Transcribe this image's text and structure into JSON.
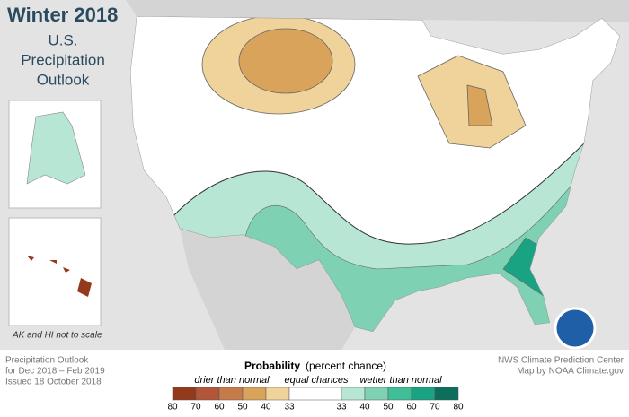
{
  "header": {
    "title": "Winter 2018",
    "subtitle": [
      "U.S.",
      "Precipitation",
      "Outlook"
    ]
  },
  "inset_note": "AK and HI not to scale",
  "footer": {
    "left": [
      "Precipitation Outlook",
      "for Dec 2018 – Feb 2019",
      "Issued 18 October 2018"
    ],
    "right": [
      "NWS Climate Prediction Center",
      "Map by NOAA Climate.gov"
    ]
  },
  "legend": {
    "title": "Probability",
    "title_note": "(percent chance)",
    "labels": [
      "drier than normal",
      "equal chances",
      "wetter than normal"
    ],
    "dry": {
      "colors": [
        "#93391c",
        "#b2553a",
        "#c87b4a",
        "#d9a35c",
        "#f0d39a"
      ],
      "ticks": [
        80,
        70,
        60,
        50,
        40,
        33
      ]
    },
    "equal_color": "#ffffff",
    "wet": {
      "colors": [
        "#b7e6d4",
        "#7fd1b4",
        "#3fbe98",
        "#1aa382",
        "#0d6e5b"
      ],
      "ticks": [
        33,
        40,
        50,
        60,
        70,
        80
      ]
    }
  }
}
